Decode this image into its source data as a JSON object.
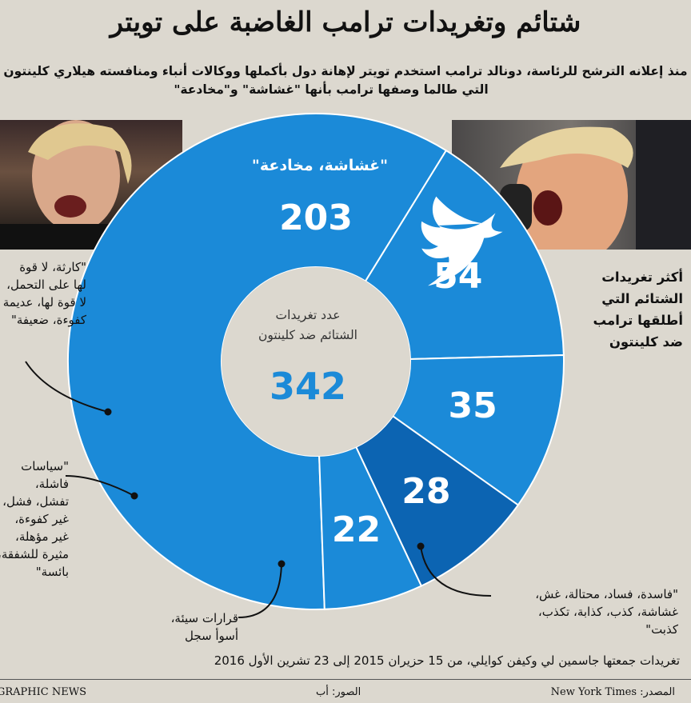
{
  "title": "شتائم وتغريدات ترامب الغاضبة على تويتر",
  "subtitle_line1": "منذ إعلانه الترشح للرئاسة، دونالد ترامب استخدم تويتر لإهانة دول بأكملها ووكالات أنباء ومنافسته هيلاري كلينتون",
  "subtitle_line2": "التي طالما وصفها ترامب بأنها \"غشاشة\" و\"مخادعة\"",
  "center_label": "عدد تغريدات\nالشتائم ضد كلينتون",
  "center_total": "342",
  "trump_callout": "أكثر تغريدات\nالشتائم التي\nأطلقها ترامب\nضد كلينتون",
  "note": "تغريدات جمعتها جاسمين لي وكيفن كوايلي، من 15 حزيران 2015 إلى 23 تشرين الأول 2016",
  "source": "المصدر: New York Times",
  "photos": "الصور: أب",
  "credit": "GRAPHIC NEWS",
  "colors": {
    "background": "#dcd8cf",
    "accent": "#1b8ad8",
    "dark_segment": "#0c64b2",
    "hole": "#dcd8cf"
  },
  "icons": [
    "twitter-bird-icon"
  ],
  "chart_data": {
    "type": "donut",
    "total": 342,
    "categories": [
      "\"غشاشة، مخادعة\"",
      "\"فاسدة، فساد، محتالة، غش، غشاشة، كذب، كذابة، تكذب، كذبت\"",
      "قرارات سيئة، أسوأ سجل",
      "\"سياسات فاشلة، تفشل، فشل، غير كفوءة، غير مؤهلة، مثيرة للشفقة، بائسة\"",
      "\"كارثة، لا قوة لها على التحمل، لا قوة لها، عديمة الكفوءة، ضعيفة\""
    ],
    "values": [
      203,
      54,
      35,
      28,
      22
    ],
    "value_labels": [
      "203",
      "54",
      "35",
      "28",
      "22"
    ],
    "inline_label": "\"غشاشة، مخادعة\"",
    "callout_texts": {
      "54": "\"فاسدة، فساد، محتالة، غش،\nغشاشة، كذب، كذابة، تكذب،\nكذبت\"",
      "35": "قرارات سيئة،\nأسوأ سجل",
      "28": "\"سياسات\nفاشلة،\nتفشل، فشل،\nغير كفوءة،\nغير مؤهلة،\nمثيرة للشفقة،\nبائسة\"",
      "22": "\"كارثة، لا قوة\nلها على التحمل،\nلا قوة لها، عديمة\nكفوءة، ضعيفة\""
    }
  }
}
